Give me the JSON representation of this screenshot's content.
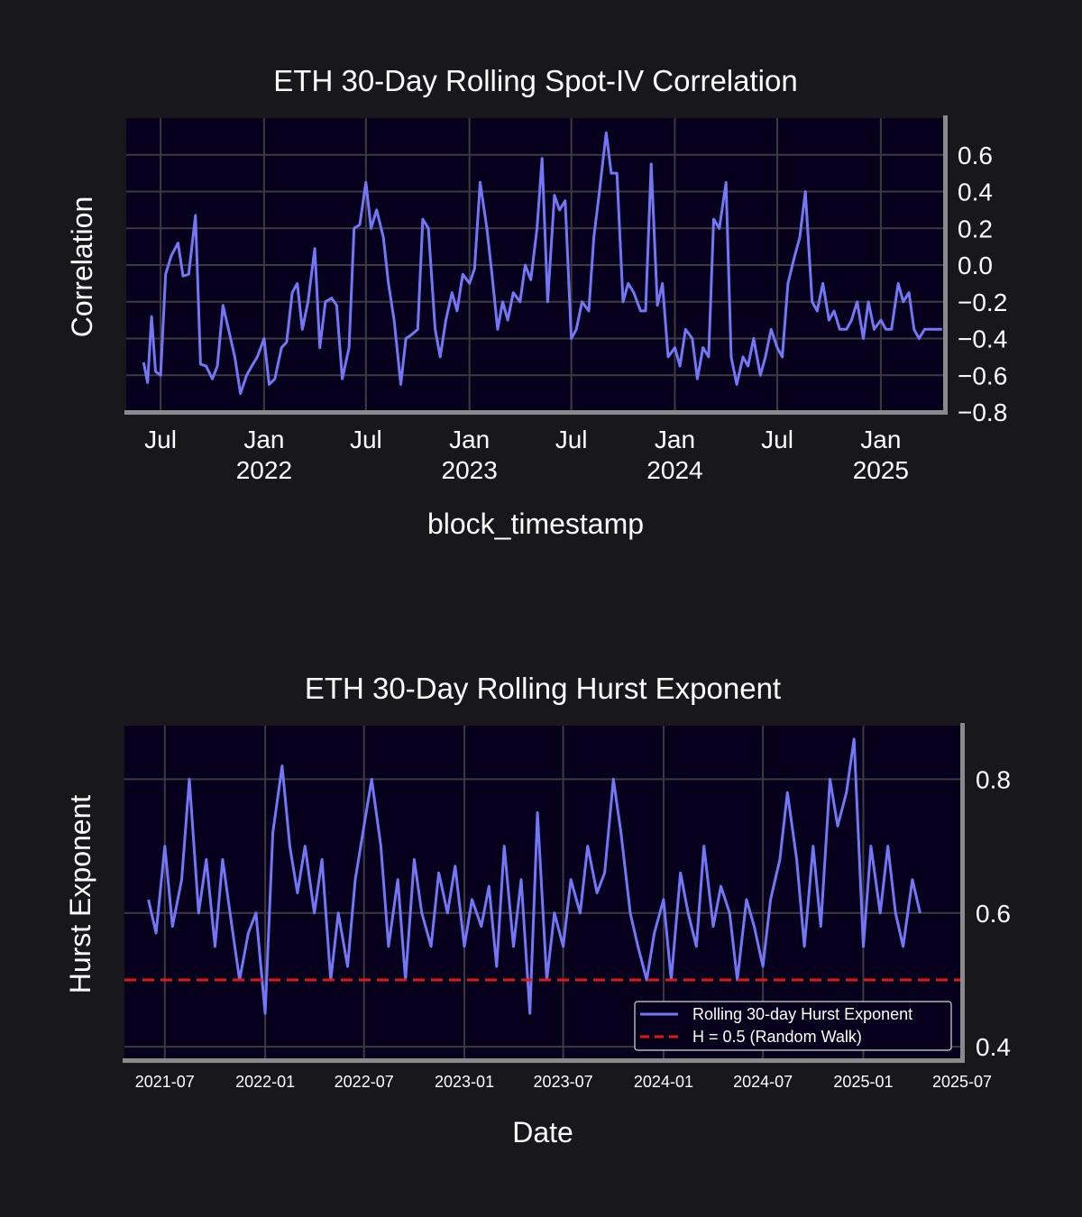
{
  "chart_data": [
    {
      "type": "line",
      "title": "ETH 30-Day Rolling Spot-IV Correlation",
      "xlabel": "block_timestamp",
      "ylabel": "Correlation",
      "x_range": [
        "2021-05-01",
        "2025-04-25"
      ],
      "ylim": [
        -0.8,
        0.8
      ],
      "y_ticks": [
        -0.8,
        -0.6,
        -0.4,
        -0.2,
        0.0,
        0.2,
        0.4,
        0.6
      ],
      "y_axis_position": "right",
      "x_ticks": [
        {
          "date": "2021-07-01",
          "label": "Jul"
        },
        {
          "date": "2022-01-01",
          "label": "Jan",
          "label2": "2022"
        },
        {
          "date": "2022-07-01",
          "label": "Jul"
        },
        {
          "date": "2023-01-01",
          "label": "Jan",
          "label2": "2023"
        },
        {
          "date": "2023-07-01",
          "label": "Jul"
        },
        {
          "date": "2024-01-01",
          "label": "Jan",
          "label2": "2024"
        },
        {
          "date": "2024-07-01",
          "label": "Jul"
        },
        {
          "date": "2025-01-01",
          "label": "Jan",
          "label2": "2025"
        }
      ],
      "grid": true,
      "series_color": "#7477f5",
      "series": [
        {
          "x": [
            "2021-06-01",
            "2021-06-08",
            "2021-06-15",
            "2021-06-22",
            "2021-07-01",
            "2021-07-10",
            "2021-07-20",
            "2021-08-01",
            "2021-08-10",
            "2021-08-20",
            "2021-09-01",
            "2021-09-10",
            "2021-09-20",
            "2021-10-01",
            "2021-10-10",
            "2021-10-20",
            "2021-11-01",
            "2021-11-10",
            "2021-11-20",
            "2021-12-01",
            "2021-12-10",
            "2021-12-20",
            "2022-01-01",
            "2022-01-10",
            "2022-01-20",
            "2022-02-01",
            "2022-02-10",
            "2022-02-20",
            "2022-03-01",
            "2022-03-10",
            "2022-03-20",
            "2022-04-01",
            "2022-04-10",
            "2022-04-20",
            "2022-05-01",
            "2022-05-10",
            "2022-05-20",
            "2022-06-01",
            "2022-06-10",
            "2022-06-20",
            "2022-07-01",
            "2022-07-10",
            "2022-07-20",
            "2022-08-01",
            "2022-08-10",
            "2022-08-20",
            "2022-09-01",
            "2022-09-10",
            "2022-09-20",
            "2022-10-01",
            "2022-10-10",
            "2022-10-20",
            "2022-11-01",
            "2022-11-10",
            "2022-11-20",
            "2022-12-01",
            "2022-12-10",
            "2022-12-20",
            "2023-01-01",
            "2023-01-10",
            "2023-01-20",
            "2023-02-01",
            "2023-02-10",
            "2023-02-20",
            "2023-03-01",
            "2023-03-10",
            "2023-03-20",
            "2023-04-01",
            "2023-04-10",
            "2023-04-20",
            "2023-05-01",
            "2023-05-10",
            "2023-05-20",
            "2023-06-01",
            "2023-06-10",
            "2023-06-20",
            "2023-07-01",
            "2023-07-10",
            "2023-07-20",
            "2023-08-01",
            "2023-08-10",
            "2023-08-20",
            "2023-09-01",
            "2023-09-10",
            "2023-09-20",
            "2023-10-01",
            "2023-10-10",
            "2023-10-20",
            "2023-11-01",
            "2023-11-10",
            "2023-11-20",
            "2023-12-01",
            "2023-12-10",
            "2023-12-20",
            "2024-01-01",
            "2024-01-10",
            "2024-01-20",
            "2024-02-01",
            "2024-02-10",
            "2024-02-20",
            "2024-03-01",
            "2024-03-10",
            "2024-03-20",
            "2024-04-01",
            "2024-04-10",
            "2024-04-20",
            "2024-05-01",
            "2024-05-10",
            "2024-05-20",
            "2024-06-01",
            "2024-06-10",
            "2024-06-20",
            "2024-07-01",
            "2024-07-10",
            "2024-07-20",
            "2024-08-01",
            "2024-08-10",
            "2024-08-20",
            "2024-09-01",
            "2024-09-10",
            "2024-09-20",
            "2024-10-01",
            "2024-10-10",
            "2024-10-20",
            "2024-11-01",
            "2024-11-10",
            "2024-11-20",
            "2024-12-01",
            "2024-12-10",
            "2024-12-20",
            "2025-01-01",
            "2025-01-10",
            "2025-01-20",
            "2025-02-01",
            "2025-02-10",
            "2025-02-20",
            "2025-03-01",
            "2025-03-10",
            "2025-03-20",
            "2025-04-01",
            "2025-04-10",
            "2025-04-20"
          ],
          "y": [
            -0.53,
            -0.64,
            -0.28,
            -0.58,
            -0.6,
            -0.05,
            0.05,
            0.12,
            -0.06,
            -0.05,
            0.27,
            -0.54,
            -0.55,
            -0.62,
            -0.55,
            -0.22,
            -0.38,
            -0.5,
            -0.7,
            -0.6,
            -0.55,
            -0.5,
            -0.4,
            -0.65,
            -0.62,
            -0.45,
            -0.42,
            -0.15,
            -0.1,
            -0.35,
            -0.2,
            0.09,
            -0.45,
            -0.2,
            -0.18,
            -0.22,
            -0.62,
            -0.45,
            0.2,
            0.22,
            0.45,
            0.2,
            0.3,
            0.15,
            -0.1,
            -0.3,
            -0.65,
            -0.4,
            -0.38,
            -0.35,
            0.25,
            0.2,
            -0.35,
            -0.5,
            -0.3,
            -0.15,
            -0.25,
            -0.05,
            -0.1,
            -0.02,
            0.45,
            0.2,
            -0.05,
            -0.35,
            -0.2,
            -0.3,
            -0.15,
            -0.2,
            0.0,
            -0.08,
            0.2,
            0.58,
            -0.2,
            0.38,
            0.3,
            0.35,
            -0.4,
            -0.35,
            -0.2,
            -0.25,
            0.15,
            0.4,
            0.72,
            0.5,
            0.5,
            -0.2,
            -0.1,
            -0.15,
            -0.25,
            -0.25,
            0.55,
            -0.22,
            -0.1,
            -0.5,
            -0.45,
            -0.55,
            -0.35,
            -0.4,
            -0.62,
            -0.45,
            -0.5,
            0.25,
            0.2,
            0.45,
            -0.5,
            -0.65,
            -0.5,
            -0.55,
            -0.4,
            -0.6,
            -0.5,
            -0.35,
            -0.45,
            -0.5,
            -0.1,
            0.05,
            0.15,
            0.4,
            -0.2,
            -0.25,
            -0.1,
            -0.3,
            -0.25,
            -0.35,
            -0.35,
            -0.3,
            -0.2,
            -0.4,
            -0.2,
            -0.35,
            -0.3,
            -0.35,
            -0.35,
            -0.1,
            -0.2,
            -0.15,
            -0.35,
            -0.4,
            -0.35,
            -0.35,
            -0.35,
            -0.35
          ]
        }
      ]
    },
    {
      "type": "line",
      "title": "ETH 30-Day Rolling Hurst Exponent",
      "xlabel": "Date",
      "ylabel": "Hurst Exponent",
      "x_range": [
        "2021-04-18",
        "2025-07-01"
      ],
      "ylim": [
        0.38,
        0.88
      ],
      "y_ticks": [
        0.4,
        0.6,
        0.8
      ],
      "y_axis_position": "right",
      "x_ticks": [
        "2021-07",
        "2022-01",
        "2022-07",
        "2023-01",
        "2023-07",
        "2024-01",
        "2024-07",
        "2025-01",
        "2025-07"
      ],
      "grid": true,
      "legend": {
        "placement": "lower right",
        "entries": [
          "Rolling 30-day Hurst Exponent",
          "H = 0.5 (Random Walk)"
        ]
      },
      "series_colors": [
        "#7477f5",
        "#e01818"
      ],
      "series": [
        {
          "name": "Rolling 30-day Hurst Exponent",
          "x": [
            "2021-06-01",
            "2021-06-15",
            "2021-07-01",
            "2021-07-15",
            "2021-08-01",
            "2021-08-15",
            "2021-09-01",
            "2021-09-15",
            "2021-10-01",
            "2021-10-15",
            "2021-11-01",
            "2021-11-15",
            "2021-12-01",
            "2021-12-15",
            "2022-01-01",
            "2022-01-15",
            "2022-02-01",
            "2022-02-15",
            "2022-03-01",
            "2022-03-15",
            "2022-04-01",
            "2022-04-15",
            "2022-05-01",
            "2022-05-15",
            "2022-06-01",
            "2022-06-15",
            "2022-07-01",
            "2022-07-15",
            "2022-08-01",
            "2022-08-15",
            "2022-09-01",
            "2022-09-15",
            "2022-10-01",
            "2022-10-15",
            "2022-11-01",
            "2022-11-15",
            "2022-12-01",
            "2022-12-15",
            "2023-01-01",
            "2023-01-15",
            "2023-02-01",
            "2023-02-15",
            "2023-03-01",
            "2023-03-15",
            "2023-04-01",
            "2023-04-15",
            "2023-05-01",
            "2023-05-15",
            "2023-06-01",
            "2023-06-15",
            "2023-07-01",
            "2023-07-15",
            "2023-08-01",
            "2023-08-15",
            "2023-09-01",
            "2023-09-15",
            "2023-10-01",
            "2023-10-15",
            "2023-11-01",
            "2023-11-15",
            "2023-12-01",
            "2023-12-15",
            "2024-01-01",
            "2024-01-15",
            "2024-02-01",
            "2024-02-15",
            "2024-03-01",
            "2024-03-15",
            "2024-04-01",
            "2024-04-15",
            "2024-05-01",
            "2024-05-15",
            "2024-06-01",
            "2024-06-15",
            "2024-07-01",
            "2024-07-15",
            "2024-08-01",
            "2024-08-15",
            "2024-09-01",
            "2024-09-15",
            "2024-10-01",
            "2024-10-15",
            "2024-11-01",
            "2024-11-15",
            "2024-12-01",
            "2024-12-15",
            "2025-01-01",
            "2025-01-15",
            "2025-02-01",
            "2025-02-15",
            "2025-03-01",
            "2025-03-15",
            "2025-04-01",
            "2025-04-15"
          ],
          "y": [
            0.62,
            0.57,
            0.7,
            0.58,
            0.65,
            0.8,
            0.6,
            0.68,
            0.55,
            0.68,
            0.58,
            0.5,
            0.57,
            0.6,
            0.45,
            0.72,
            0.82,
            0.7,
            0.63,
            0.7,
            0.6,
            0.68,
            0.5,
            0.6,
            0.52,
            0.65,
            0.73,
            0.8,
            0.7,
            0.55,
            0.65,
            0.5,
            0.68,
            0.6,
            0.55,
            0.66,
            0.6,
            0.67,
            0.55,
            0.62,
            0.58,
            0.64,
            0.52,
            0.7,
            0.55,
            0.65,
            0.45,
            0.75,
            0.5,
            0.6,
            0.55,
            0.65,
            0.6,
            0.7,
            0.63,
            0.66,
            0.8,
            0.72,
            0.6,
            0.55,
            0.5,
            0.57,
            0.62,
            0.5,
            0.66,
            0.6,
            0.55,
            0.7,
            0.58,
            0.64,
            0.6,
            0.5,
            0.62,
            0.58,
            0.52,
            0.62,
            0.68,
            0.78,
            0.68,
            0.55,
            0.7,
            0.58,
            0.8,
            0.73,
            0.78,
            0.86,
            0.55,
            0.7,
            0.6,
            0.7,
            0.6,
            0.55,
            0.65,
            0.6
          ]
        },
        {
          "name": "H = 0.5 (Random Walk)",
          "y_constant": 0.5
        }
      ]
    }
  ]
}
